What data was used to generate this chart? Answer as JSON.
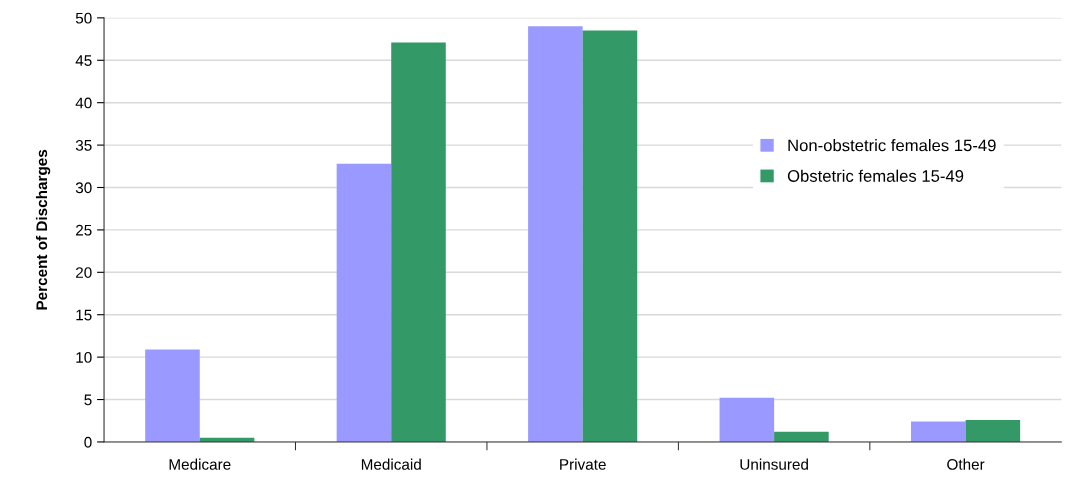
{
  "chart_data": {
    "type": "bar",
    "ylabel": "Percent of Discharges",
    "categories": [
      "Medicare",
      "Medicaid",
      "Private",
      "Uninsured",
      "Other"
    ],
    "series": [
      {
        "name": "Non-obstetric females 15-49",
        "color": "#9999ff",
        "values": [
          10.9,
          32.8,
          49.0,
          5.2,
          2.4
        ]
      },
      {
        "name": "Obstetric females 15-49",
        "color": "#339966",
        "values": [
          0.5,
          47.1,
          48.5,
          1.2,
          2.6
        ]
      }
    ],
    "ylim": [
      0,
      50
    ],
    "yticks": [
      0,
      5,
      10,
      15,
      20,
      25,
      30,
      35,
      40,
      45,
      50
    ],
    "grid": "y",
    "legend": "right"
  }
}
